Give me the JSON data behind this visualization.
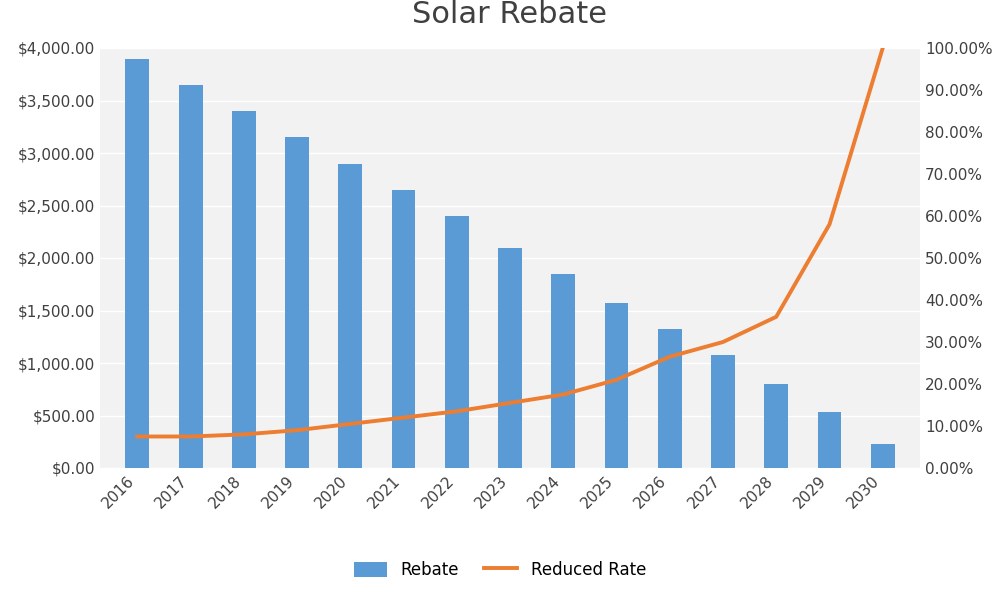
{
  "title": "Solar Rebate",
  "years": [
    2016,
    2017,
    2018,
    2019,
    2020,
    2021,
    2022,
    2023,
    2024,
    2025,
    2026,
    2027,
    2028,
    2029,
    2030
  ],
  "rebate": [
    3900,
    3650,
    3400,
    3150,
    2900,
    2650,
    2400,
    2100,
    1850,
    1575,
    1325,
    1075,
    800,
    530,
    230
  ],
  "reduced_rate": [
    0.075,
    0.075,
    0.08,
    0.09,
    0.105,
    0.12,
    0.135,
    0.155,
    0.175,
    0.21,
    0.265,
    0.3,
    0.36,
    0.58,
    1.0
  ],
  "bar_color": "#5B9BD5",
  "line_color": "#ED7D31",
  "background_color": "#FFFFFF",
  "plot_bg_color": "#F2F2F2",
  "grid_color": "#FFFFFF",
  "title_color": "#404040",
  "tick_color": "#404040",
  "title_fontsize": 22,
  "tick_fontsize": 11,
  "legend_fontsize": 12,
  "yleft_max": 4000,
  "yleft_step": 500,
  "yright_max": 1.0,
  "yright_step": 0.1,
  "bar_width": 0.45,
  "legend_labels": [
    "Rebate",
    "Reduced Rate"
  ]
}
